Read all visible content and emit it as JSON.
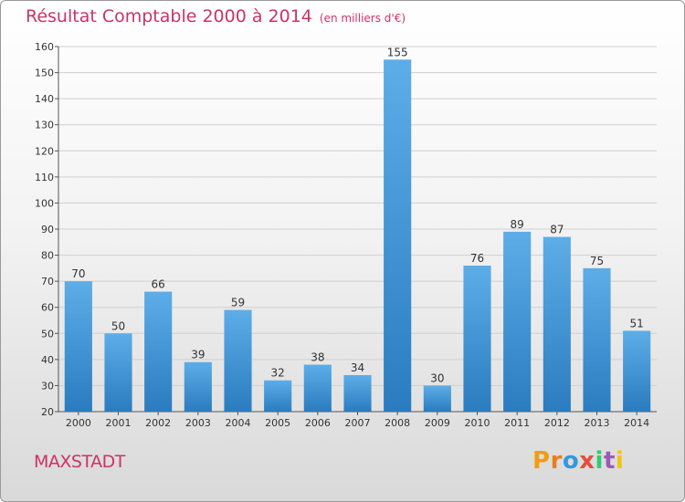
{
  "title": "Résultat Comptable 2000 à 2014",
  "subtitle": "(en milliers d'€)",
  "commune": "MAXSTADT",
  "logo": {
    "letters": [
      "P",
      "r",
      "o",
      "x",
      "i",
      "t",
      "i"
    ],
    "colors": [
      "#f39c12",
      "#e67e22",
      "#3498db",
      "#e74c3c",
      "#2ecc71",
      "#9b59b6",
      "#f1c40f"
    ]
  },
  "colors": {
    "title": "#cc3366",
    "bar_top": "#5dade8",
    "bar_bottom": "#2a7cbf",
    "grid": "#d0d0d0"
  },
  "chart_data": {
    "type": "bar",
    "title": "Résultat Comptable 2000 à 2014",
    "subtitle": "(en milliers d'€)",
    "xlabel": "",
    "ylabel": "",
    "ylim": [
      20,
      160
    ],
    "yticks": [
      20,
      30,
      40,
      50,
      60,
      70,
      80,
      90,
      100,
      110,
      120,
      130,
      140,
      150,
      160
    ],
    "grid": true,
    "categories": [
      "2000",
      "2001",
      "2002",
      "2003",
      "2004",
      "2005",
      "2006",
      "2007",
      "2008",
      "2009",
      "2010",
      "2011",
      "2012",
      "2013",
      "2014"
    ],
    "values": [
      70,
      50,
      66,
      39,
      59,
      32,
      38,
      34,
      155,
      30,
      76,
      89,
      87,
      75,
      51
    ]
  }
}
